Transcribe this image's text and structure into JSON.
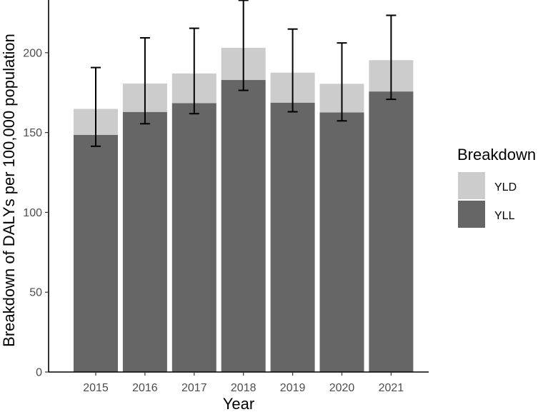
{
  "chart_data": {
    "type": "bar",
    "stacked": true,
    "title": "",
    "xlabel": "Year",
    "ylabel": "Breakdown of DALYs per 100,000 population",
    "categories": [
      "2015",
      "2016",
      "2017",
      "2018",
      "2019",
      "2020",
      "2021"
    ],
    "series": [
      {
        "name": "YLL",
        "values": [
          148.5,
          162.9,
          168.4,
          182.9,
          168.7,
          162.6,
          175.7
        ],
        "color": "#666666"
      },
      {
        "name": "YLD",
        "values": [
          16.3,
          17.8,
          18.6,
          20.2,
          18.8,
          17.9,
          19.6
        ],
        "color": "#cccccc"
      }
    ],
    "totals": [
      164.8,
      180.7,
      187.0,
      203.1,
      187.5,
      180.5,
      195.3
    ],
    "error_bars": {
      "lower": [
        141.4,
        155.5,
        161.8,
        176.4,
        163.0,
        157.3,
        170.8
      ],
      "upper": [
        190.7,
        209.3,
        215.3,
        232.8,
        214.8,
        206.1,
        223.4
      ],
      "color": "#000000"
    },
    "ylim": [
      0,
      233
    ],
    "y_ticks": [
      0,
      50,
      100,
      150,
      200
    ],
    "grid": false,
    "legend": {
      "title": "Breakdown",
      "position": "right",
      "entries": [
        {
          "label": "YLD",
          "color": "#cccccc"
        },
        {
          "label": "YLL",
          "color": "#666666"
        }
      ]
    }
  }
}
